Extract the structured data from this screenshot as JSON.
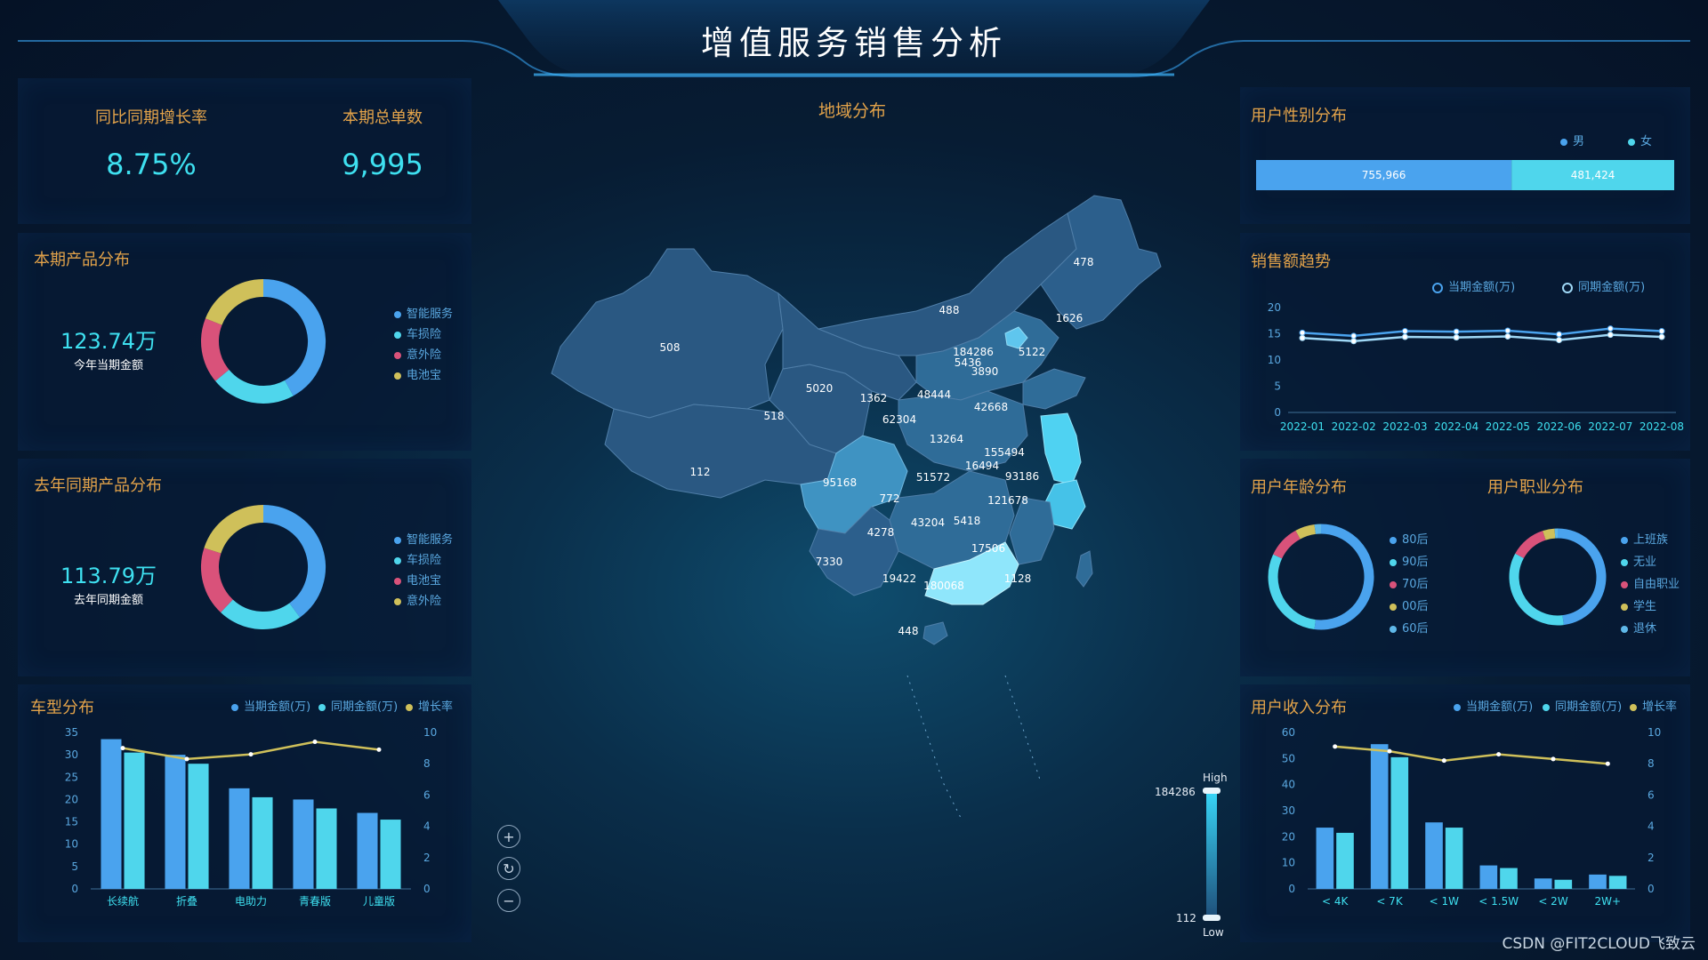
{
  "page": {
    "title": "增值服务销售分析",
    "watermark": "CSDN @FIT2CLOUD飞致云"
  },
  "kpi": [
    {
      "label": "同比同期增长率",
      "value": "8.75%"
    },
    {
      "label": "本期总单数",
      "value": "9,995"
    }
  ],
  "product_current": {
    "title": "本期产品分布",
    "value": "123.74万",
    "sub": "今年当期金额",
    "legend": [
      {
        "name": "智能服务",
        "color": "#4aa3ee"
      },
      {
        "name": "车损险",
        "color": "#4fd6ec"
      },
      {
        "name": "意外险",
        "color": "#d9527a"
      },
      {
        "name": "电池宝",
        "color": "#cfc05a"
      }
    ]
  },
  "product_last": {
    "title": "去年同期产品分布",
    "value": "113.79万",
    "sub": "去年同期金额",
    "legend": [
      {
        "name": "智能服务",
        "color": "#4aa3ee"
      },
      {
        "name": "车损险",
        "color": "#4fd6ec"
      },
      {
        "name": "电池宝",
        "color": "#d9527a"
      },
      {
        "name": "意外险",
        "color": "#cfc05a"
      }
    ]
  },
  "map": {
    "title": "地域分布",
    "legend_high_label": "High",
    "legend_low_label": "Low",
    "legend_max": "184286",
    "legend_min": "112",
    "controls": [
      {
        "name": "zoom-in",
        "glyph": "+"
      },
      {
        "name": "reset",
        "glyph": "↻"
      },
      {
        "name": "zoom-out",
        "glyph": "−"
      }
    ],
    "region_labels": [
      "508",
      "112",
      "518",
      "5020",
      "1362",
      "62304",
      "48444",
      "488",
      "478",
      "1626",
      "5122",
      "184286",
      "5436",
      "3890",
      "42668",
      "13264",
      "155494",
      "16494",
      "93186",
      "51572",
      "95168",
      "772",
      "4278",
      "43204",
      "5418",
      "121678",
      "17506",
      "7330",
      "19422",
      "180068",
      "1128",
      "448"
    ]
  },
  "gender": {
    "title": "用户性别分布",
    "legend": [
      {
        "name": "男",
        "color": "#4aa3ee"
      },
      {
        "name": "女",
        "color": "#4fd6ec"
      }
    ]
  },
  "sales_trend": {
    "title": "销售额趋势",
    "legend": [
      {
        "name": "当期金额(万)",
        "color": "#4aa3ee"
      },
      {
        "name": "同期金额(万)",
        "color": "#9fd8f6"
      }
    ]
  },
  "age": {
    "title": "用户年龄分布",
    "legend": [
      {
        "name": "80后",
        "color": "#4aa3ee"
      },
      {
        "name": "90后",
        "color": "#4fd6ec"
      },
      {
        "name": "70后",
        "color": "#d9527a"
      },
      {
        "name": "00后",
        "color": "#cfc05a"
      },
      {
        "name": "60后",
        "color": "#5fb8e8"
      }
    ]
  },
  "occupation": {
    "title": "用户职业分布",
    "legend": [
      {
        "name": "上班族",
        "color": "#4aa3ee"
      },
      {
        "name": "无业",
        "color": "#4fd6ec"
      },
      {
        "name": "自由职业",
        "color": "#d9527a"
      },
      {
        "name": "学生",
        "color": "#cfc05a"
      },
      {
        "name": "退休",
        "color": "#5fb8e8"
      }
    ]
  },
  "vehicle": {
    "title": "车型分布",
    "legend": [
      {
        "name": "当期金额(万)",
        "color": "#4aa3ee"
      },
      {
        "name": "同期金额(万)",
        "color": "#4fd6ec"
      },
      {
        "name": "增长率",
        "color": "#cfc05a"
      }
    ]
  },
  "income": {
    "title": "用户收入分布",
    "legend": [
      {
        "name": "当期金额(万)",
        "color": "#4aa3ee"
      },
      {
        "name": "同期金额(万)",
        "color": "#4fd6ec"
      },
      {
        "name": "增长率",
        "color": "#cfc05a"
      }
    ]
  },
  "chart_data": [
    {
      "id": "product_current",
      "type": "pie",
      "donut": true,
      "slices": [
        {
          "name": "智能服务",
          "value": 42,
          "color": "#4aa3ee"
        },
        {
          "name": "车损险",
          "value": 22,
          "color": "#4fd6ec"
        },
        {
          "name": "意外险",
          "value": 17,
          "color": "#d9527a"
        },
        {
          "name": "电池宝",
          "value": 19,
          "color": "#cfc05a"
        }
      ]
    },
    {
      "id": "product_last",
      "type": "pie",
      "donut": true,
      "slices": [
        {
          "name": "智能服务",
          "value": 40,
          "color": "#4aa3ee"
        },
        {
          "name": "车损险",
          "value": 22,
          "color": "#4fd6ec"
        },
        {
          "name": "电池宝",
          "value": 18,
          "color": "#d9527a"
        },
        {
          "name": "意外险",
          "value": 20,
          "color": "#cfc05a"
        }
      ]
    },
    {
      "id": "gender",
      "type": "bar",
      "stacked": true,
      "orientation": "horizontal",
      "series": [
        {
          "name": "男",
          "value": 755966,
          "label": "755,966",
          "color": "#4aa3ee"
        },
        {
          "name": "女",
          "value": 481424,
          "label": "481,424",
          "color": "#4fd6ec"
        }
      ]
    },
    {
      "id": "sales_trend",
      "type": "line",
      "x": [
        "2022-01",
        "2022-02",
        "2022-03",
        "2022-04",
        "2022-05",
        "2022-06",
        "2022-07",
        "2022-08"
      ],
      "ylim": [
        0,
        20
      ],
      "yticks": [
        0,
        5,
        10,
        15,
        20
      ],
      "series": [
        {
          "name": "当期金额(万)",
          "values": [
            15.2,
            14.6,
            15.5,
            15.4,
            15.6,
            14.9,
            16.0,
            15.5
          ],
          "color": "#4aa3ee"
        },
        {
          "name": "同期金额(万)",
          "values": [
            14.2,
            13.6,
            14.4,
            14.3,
            14.5,
            13.8,
            14.8,
            14.4
          ],
          "color": "#9fd8f6"
        }
      ]
    },
    {
      "id": "age",
      "type": "pie",
      "donut": true,
      "slices": [
        {
          "name": "80后",
          "value": 52,
          "color": "#4aa3ee"
        },
        {
          "name": "90后",
          "value": 30,
          "color": "#4fd6ec"
        },
        {
          "name": "70后",
          "value": 10,
          "color": "#d9527a"
        },
        {
          "name": "00后",
          "value": 6,
          "color": "#cfc05a"
        },
        {
          "name": "60后",
          "value": 2,
          "color": "#5fb8e8"
        }
      ]
    },
    {
      "id": "occupation",
      "type": "pie",
      "donut": true,
      "slices": [
        {
          "name": "上班族",
          "value": 48,
          "color": "#4aa3ee"
        },
        {
          "name": "无业",
          "value": 35,
          "color": "#4fd6ec"
        },
        {
          "name": "自由职业",
          "value": 12,
          "color": "#d9527a"
        },
        {
          "name": "学生",
          "value": 4,
          "color": "#cfc05a"
        },
        {
          "name": "退休",
          "value": 1,
          "color": "#5fb8e8"
        }
      ]
    },
    {
      "id": "vehicle",
      "type": "bar",
      "categories": [
        "长续航",
        "折叠",
        "电助力",
        "青春版",
        "儿童版"
      ],
      "ylim": [
        0,
        35
      ],
      "yticks": [
        0,
        5,
        10,
        15,
        20,
        25,
        30,
        35
      ],
      "y2lim": [
        0,
        10
      ],
      "y2ticks": [
        0,
        2,
        4,
        6,
        8,
        10
      ],
      "series": [
        {
          "name": "当期金额(万)",
          "values": [
            33.5,
            30,
            22.5,
            20,
            17
          ],
          "color": "#4aa3ee",
          "axis": "left"
        },
        {
          "name": "同期金额(万)",
          "values": [
            30.5,
            28,
            20.5,
            18,
            15.5
          ],
          "color": "#4fd6ec",
          "axis": "left"
        },
        {
          "name": "增长率",
          "type": "line",
          "values": [
            9.0,
            8.3,
            8.6,
            9.4,
            8.9
          ],
          "color": "#cfc05a",
          "axis": "right"
        }
      ]
    },
    {
      "id": "income",
      "type": "bar",
      "categories": [
        "< 4K",
        "< 7K",
        "< 1W",
        "< 1.5W",
        "< 2W",
        "2W+"
      ],
      "ylim": [
        0,
        60
      ],
      "yticks": [
        0,
        10,
        20,
        30,
        40,
        50,
        60
      ],
      "y2lim": [
        0,
        10
      ],
      "y2ticks": [
        0,
        2,
        4,
        6,
        8,
        10
      ],
      "series": [
        {
          "name": "当期金额(万)",
          "values": [
            23.5,
            55.5,
            25.5,
            9,
            4,
            5.5
          ],
          "color": "#4aa3ee",
          "axis": "left"
        },
        {
          "name": "同期金额(万)",
          "values": [
            21.5,
            50.5,
            23.5,
            8,
            3.5,
            5
          ],
          "color": "#4fd6ec",
          "axis": "left"
        },
        {
          "name": "增长率",
          "type": "line",
          "values": [
            9.1,
            8.8,
            8.2,
            8.6,
            8.3,
            8.0
          ],
          "color": "#cfc05a",
          "axis": "right"
        }
      ]
    }
  ]
}
